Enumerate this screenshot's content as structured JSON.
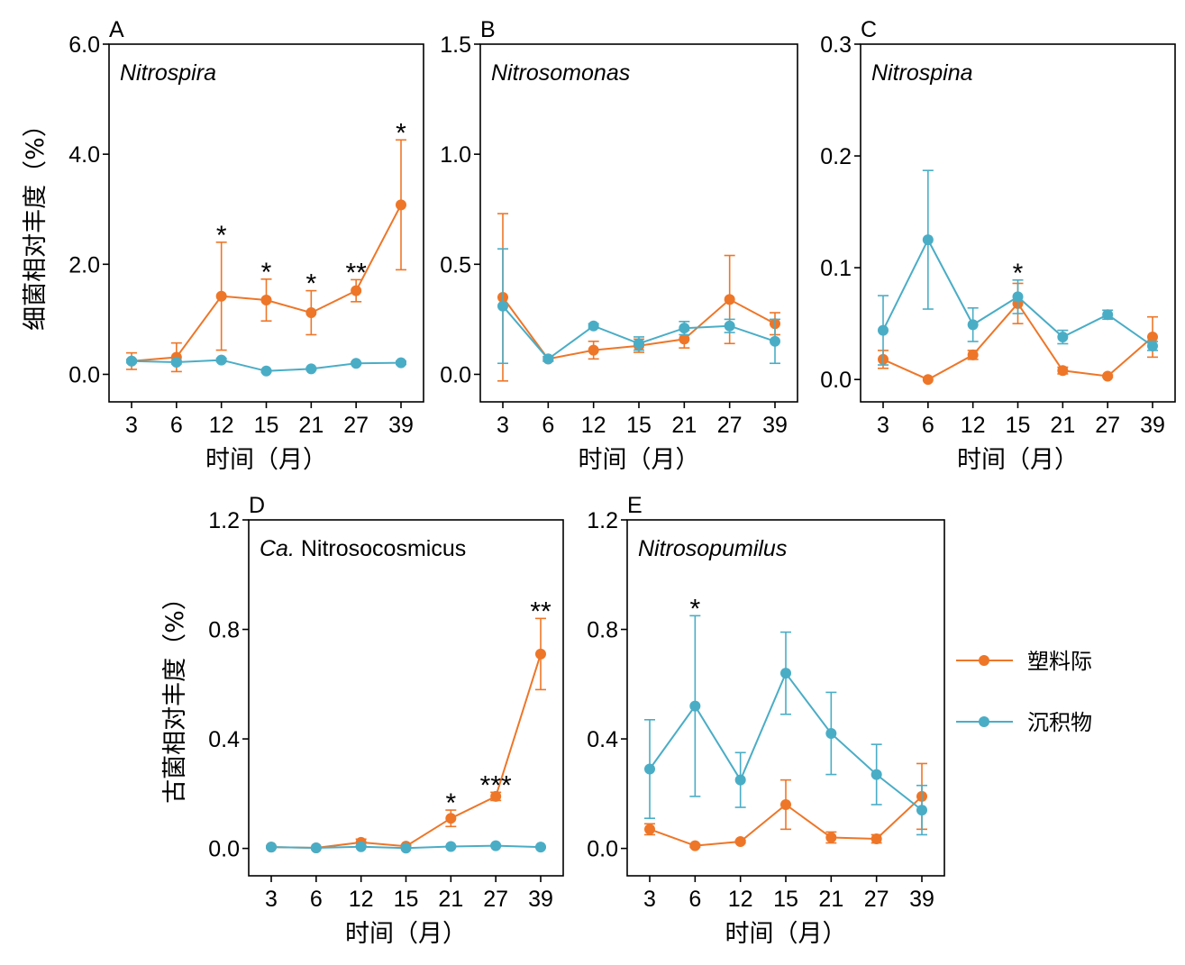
{
  "colors": {
    "plastisphere": "#EE7628",
    "sediment": "#4AADC6"
  },
  "legend": {
    "series": [
      "塑料际",
      "沉积物"
    ]
  },
  "y_labels": {
    "bacteria": "细菌相对丰度（%）",
    "archaea": "古菌相对丰度（%）"
  },
  "x_label": "时间（月）",
  "chart_data": [
    {
      "type": "line",
      "panel": "A",
      "title": "Nitrospira",
      "title_italic": true,
      "x": [
        "3",
        "6",
        "12",
        "15",
        "21",
        "27",
        "39"
      ],
      "ylim": [
        -0.5,
        6.0
      ],
      "yticks": [
        "0.0",
        "2.0",
        "4.0",
        "6.0"
      ],
      "ytick_values": [
        0,
        2,
        4,
        6
      ],
      "series": [
        {
          "name": "塑料际",
          "values": [
            0.24,
            0.31,
            1.42,
            1.35,
            1.12,
            1.52,
            3.08
          ],
          "errors": [
            0.15,
            0.26,
            0.98,
            0.38,
            0.4,
            0.2,
            1.18
          ]
        },
        {
          "name": "沉积物",
          "values": [
            0.24,
            0.22,
            0.26,
            0.06,
            0.1,
            0.2,
            0.21
          ],
          "errors": [
            0.03,
            0.03,
            0.03,
            0.02,
            0.02,
            0.02,
            0.03
          ]
        }
      ],
      "significance": [
        "",
        "",
        "*",
        "*",
        "*",
        "**",
        "*"
      ]
    },
    {
      "type": "line",
      "panel": "B",
      "title": "Nitrosomonas",
      "title_italic": true,
      "x": [
        "3",
        "6",
        "12",
        "15",
        "21",
        "27",
        "39"
      ],
      "ylim": [
        -0.125,
        1.5
      ],
      "yticks": [
        "0.0",
        "0.5",
        "1.0",
        "1.5"
      ],
      "ytick_values": [
        0,
        0.5,
        1.0,
        1.5
      ],
      "series": [
        {
          "name": "塑料际",
          "values": [
            0.35,
            0.07,
            0.11,
            0.13,
            0.16,
            0.34,
            0.23
          ],
          "errors": [
            0.38,
            0.01,
            0.04,
            0.03,
            0.04,
            0.2,
            0.05
          ]
        },
        {
          "name": "沉积物",
          "values": [
            0.31,
            0.07,
            0.22,
            0.14,
            0.21,
            0.22,
            0.15
          ],
          "errors": [
            0.26,
            0.01,
            0.01,
            0.03,
            0.03,
            0.03,
            0.1
          ]
        }
      ],
      "significance": [
        "",
        "",
        "",
        "",
        "",
        "",
        ""
      ]
    },
    {
      "type": "line",
      "panel": "C",
      "title": "Nitrospina",
      "title_italic": true,
      "x": [
        "3",
        "6",
        "12",
        "15",
        "21",
        "27",
        "39"
      ],
      "ylim": [
        -0.02,
        0.3
      ],
      "yticks": [
        "0.0",
        "0.1",
        "0.2",
        "0.3"
      ],
      "ytick_values": [
        0,
        0.1,
        0.2,
        0.3
      ],
      "series": [
        {
          "name": "塑料际",
          "values": [
            0.018,
            0.0,
            0.022,
            0.068,
            0.008,
            0.003,
            0.038
          ],
          "errors": [
            0.008,
            0.0,
            0.004,
            0.018,
            0.003,
            0.001,
            0.018
          ]
        },
        {
          "name": "沉积物",
          "values": [
            0.044,
            0.125,
            0.049,
            0.074,
            0.038,
            0.058,
            0.03
          ],
          "errors": [
            0.031,
            0.062,
            0.015,
            0.015,
            0.006,
            0.004,
            0.004
          ]
        }
      ],
      "significance": [
        "",
        "",
        "",
        "*",
        "",
        "",
        ""
      ]
    },
    {
      "type": "line",
      "panel": "D",
      "title_italic_part": "Ca.",
      "title_rest": " Nitrosocosmicus",
      "x": [
        "3",
        "6",
        "12",
        "15",
        "21",
        "27",
        "39"
      ],
      "ylim": [
        -0.1,
        1.2
      ],
      "yticks": [
        "0.0",
        "0.4",
        "0.8",
        "1.2"
      ],
      "ytick_values": [
        0,
        0.4,
        0.8,
        1.2
      ],
      "series": [
        {
          "name": "塑料际",
          "values": [
            0.005,
            0.002,
            0.022,
            0.008,
            0.11,
            0.19,
            0.71
          ],
          "errors": [
            0.003,
            0.002,
            0.012,
            0.004,
            0.03,
            0.015,
            0.13
          ]
        },
        {
          "name": "沉积物",
          "values": [
            0.005,
            0.002,
            0.006,
            0.001,
            0.007,
            0.01,
            0.005
          ],
          "errors": [
            0.002,
            0.001,
            0.002,
            0.001,
            0.002,
            0.002,
            0.002
          ]
        }
      ],
      "significance": [
        "",
        "",
        "",
        "",
        "*",
        "***",
        "**"
      ]
    },
    {
      "type": "line",
      "panel": "E",
      "title": "Nitrosopumilus",
      "title_italic": true,
      "x": [
        "3",
        "6",
        "12",
        "15",
        "21",
        "27",
        "39"
      ],
      "ylim": [
        -0.1,
        1.2
      ],
      "yticks": [
        "0.0",
        "0.4",
        "0.8",
        "1.2"
      ],
      "ytick_values": [
        0,
        0.4,
        0.8,
        1.2
      ],
      "series": [
        {
          "name": "塑料际",
          "values": [
            0.07,
            0.01,
            0.025,
            0.16,
            0.04,
            0.035,
            0.19
          ],
          "errors": [
            0.02,
            0.005,
            0.005,
            0.09,
            0.02,
            0.015,
            0.12
          ]
        },
        {
          "name": "沉积物",
          "values": [
            0.29,
            0.52,
            0.25,
            0.64,
            0.42,
            0.27,
            0.14
          ],
          "errors": [
            0.18,
            0.33,
            0.1,
            0.15,
            0.15,
            0.11,
            0.09
          ]
        }
      ],
      "significance": [
        "",
        "*",
        "",
        "",
        "",
        "",
        ""
      ]
    }
  ]
}
